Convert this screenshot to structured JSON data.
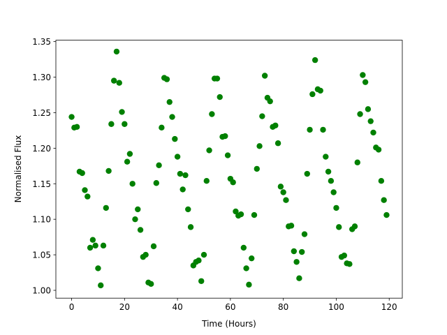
{
  "chart_data": {
    "type": "scatter",
    "xlabel": "Time (Hours)",
    "ylabel": "Normalised Flux",
    "color": "#008000",
    "x": [
      0,
      1,
      2,
      3,
      4,
      5,
      6,
      7,
      8,
      9,
      10,
      11,
      12,
      13,
      14,
      15,
      16,
      17,
      18,
      19,
      20,
      21,
      22,
      23,
      24,
      25,
      26,
      27,
      28,
      29,
      30,
      31,
      32,
      33,
      34,
      35,
      36,
      37,
      38,
      39,
      40,
      41,
      42,
      43,
      44,
      45,
      46,
      47,
      48,
      49,
      50,
      51,
      52,
      53,
      54,
      55,
      56,
      57,
      58,
      59,
      60,
      61,
      62,
      63,
      64,
      65,
      66,
      67,
      68,
      69,
      70,
      71,
      72,
      73,
      74,
      75,
      76,
      77,
      78,
      79,
      80,
      81,
      82,
      83,
      84,
      85,
      86,
      87,
      88,
      89,
      90,
      91,
      92,
      93,
      94,
      95,
      96,
      97,
      98,
      99,
      100,
      101,
      102,
      103,
      104,
      105,
      106,
      107,
      108,
      109,
      110,
      111,
      112,
      113,
      114,
      115,
      116,
      117,
      118,
      119
    ],
    "values": [
      1.244,
      1.229,
      1.23,
      1.167,
      1.165,
      1.141,
      1.132,
      1.06,
      1.071,
      1.063,
      1.031,
      1.007,
      1.063,
      1.116,
      1.168,
      1.234,
      1.295,
      1.336,
      1.292,
      1.251,
      1.234,
      1.181,
      1.192,
      1.15,
      1.1,
      1.114,
      1.085,
      1.047,
      1.05,
      1.011,
      1.009,
      1.062,
      1.151,
      1.176,
      1.229,
      1.299,
      1.297,
      1.265,
      1.244,
      1.213,
      1.188,
      1.164,
      1.142,
      1.162,
      1.114,
      1.089,
      1.035,
      1.04,
      1.042,
      1.013,
      1.05,
      1.154,
      1.197,
      1.248,
      1.298,
      1.298,
      1.272,
      1.216,
      1.217,
      1.19,
      1.157,
      1.152,
      1.111,
      1.105,
      1.107,
      1.06,
      1.031,
      1.008,
      1.045,
      1.106,
      1.171,
      1.203,
      1.245,
      1.302,
      1.271,
      1.266,
      1.23,
      1.232,
      1.207,
      1.146,
      1.138,
      1.127,
      1.09,
      1.091,
      1.055,
      1.04,
      1.017,
      1.054,
      1.079,
      1.164,
      1.226,
      1.276,
      1.324,
      1.283,
      1.281,
      1.226,
      1.188,
      1.167,
      1.154,
      1.138,
      1.116,
      1.089,
      1.047,
      1.049,
      1.038,
      1.037,
      1.086,
      1.09,
      1.18,
      1.248,
      1.303,
      1.293,
      1.255,
      1.238,
      1.222,
      1.201,
      1.198,
      1.154,
      1.127,
      1.106
    ],
    "xlim": [
      -5.95,
      124.95
    ],
    "ylim": [
      0.989,
      1.352
    ],
    "xticks": [
      0,
      20,
      40,
      60,
      80,
      100,
      120
    ],
    "yticks": [
      {
        "value": 1.0,
        "label": "1.00"
      },
      {
        "value": 1.05,
        "label": "1.05"
      },
      {
        "value": 1.1,
        "label": "1.10"
      },
      {
        "value": 1.15,
        "label": "1.15"
      },
      {
        "value": 1.2,
        "label": "1.20"
      },
      {
        "value": 1.25,
        "label": "1.25"
      },
      {
        "value": 1.3,
        "label": "1.30"
      },
      {
        "value": 1.35,
        "label": "1.35"
      }
    ]
  }
}
